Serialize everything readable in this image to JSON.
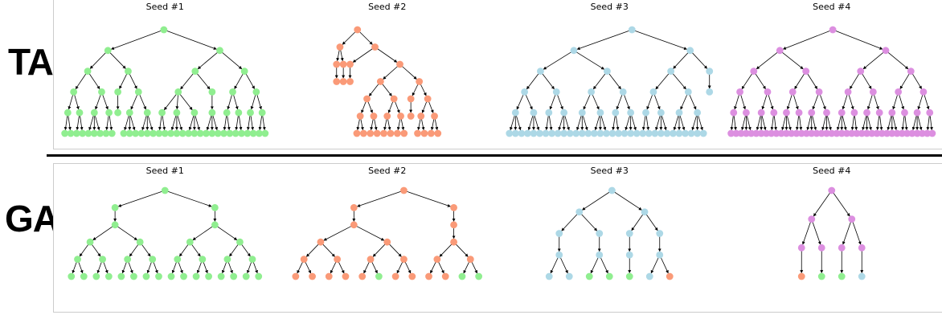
{
  "colors": {
    "green": "#90ee90",
    "orange": "#fa9a78",
    "blue": "#add8e6",
    "purple": "#dc8fe0"
  },
  "rows": [
    {
      "id": "tap",
      "label": "TAP",
      "seeds": [
        {
          "title": "Seed #1",
          "color": "green",
          "tree": [
            [
              [
                [
                  [
                    "g",
                    "g"
                  ],
                  [
                    "g",
                    "g"
                  ]
                ],
                [
                  [
                    "g",
                    "g",
                    "g"
                  ],
                  [
                    "g",
                    "g"
                  ]
                ]
              ],
              [
                [
                  "g"
                ],
                [
                  [
                    "g",
                    "g",
                    "g"
                  ],
                  [
                    "g",
                    "g",
                    "g"
                  ]
                ]
              ]
            ],
            [
              [
                [
                  [
                    "g",
                    "g"
                  ],
                  [
                    "g",
                    "g",
                    "g"
                  ],
                  [
                    "g",
                    "g",
                    "g"
                  ]
                ],
                [
                  [
                    "g",
                    "g",
                    "g"
                  ]
                ]
              ],
              [
                [
                  [
                    "g",
                    "g"
                  ],
                  [
                    "g",
                    "g"
                  ]
                ],
                [
                  [
                    "g",
                    "g"
                  ],
                  [
                    "g",
                    "g"
                  ]
                ]
              ]
            ]
          ]
        },
        {
          "title": "Seed #2",
          "color": "orange",
          "tree": [
            [
              [
                "o"
              ],
              [
                "o"
              ]
            ],
            [
              [
                "o"
              ],
              [
                [
                  [
                    [
                      "o",
                      "o"
                    ],
                    [
                      "o",
                      "o"
                    ]
                  ],
                  [
                    [
                      "o",
                      "o"
                    ],
                    [
                      "o",
                      "o"
                    ]
                  ]
                ],
                [
                  [
                    "o"
                  ],
                  [
                    [
                      "o",
                      "o"
                    ],
                    [
                      "o",
                      "o"
                    ]
                  ]
                ]
              ]
            ]
          ]
        },
        {
          "title": "Seed #3",
          "color": "blue",
          "tree": [
            [
              [
                [
                  [
                    "b",
                    "b",
                    "b"
                  ],
                  [
                    "b",
                    "b",
                    "b"
                  ]
                ],
                [
                  [
                    "b",
                    "b"
                  ],
                  [
                    "b",
                    "b",
                    "b"
                  ]
                ]
              ],
              [
                [
                  [
                    "b",
                    "b",
                    "b"
                  ],
                  [
                    "b",
                    "b",
                    "b"
                  ]
                ],
                [
                  [
                    "b",
                    "b"
                  ],
                  [
                    "b",
                    "b",
                    "b"
                  ]
                ]
              ]
            ],
            [
              [
                [
                  [
                    "b",
                    "b"
                  ],
                  [
                    "b",
                    "b",
                    "b"
                  ]
                ],
                [
                  [
                    "b",
                    "b",
                    "b"
                  ],
                  [
                    "b",
                    "b",
                    "b"
                  ]
                ]
              ],
              [
                "b"
              ]
            ]
          ]
        },
        {
          "title": "Seed #4",
          "color": "purple",
          "tree": [
            [
              [
                [
                  [
                    "p",
                    "p"
                  ],
                  [
                    "p",
                    "p",
                    "p"
                  ]
                ],
                [
                  [
                    "p",
                    "p",
                    "p"
                  ],
                  [
                    "p",
                    "p"
                  ]
                ]
              ],
              [
                [
                  [
                    "p",
                    "p",
                    "p"
                  ],
                  [
                    "p",
                    "p"
                  ]
                ],
                [
                  [
                    "p",
                    "p",
                    "p"
                  ],
                  [
                    "p",
                    "p",
                    "p"
                  ]
                ]
              ]
            ],
            [
              [
                [
                  [
                    "p",
                    "p",
                    "p"
                  ],
                  [
                    "p",
                    "p"
                  ]
                ],
                [
                  [
                    "p",
                    "p",
                    "p"
                  ],
                  [
                    "p",
                    "p"
                  ]
                ]
              ],
              [
                [
                  [
                    "p",
                    "p",
                    "p"
                  ],
                  [
                    "p",
                    "p"
                  ]
                ],
                [
                  [
                    "p",
                    "p",
                    "p"
                  ],
                  [
                    "p",
                    "p"
                  ]
                ]
              ]
            ]
          ]
        }
      ]
    },
    {
      "id": "gap",
      "label": "GAP",
      "seeds": [
        {
          "title": "Seed #1",
          "color": "green",
          "tree": [
            [
              [
                [
                  [
                    "g",
                    "g"
                  ],
                  [
                    "g",
                    "g"
                  ]
                ],
                [
                  [
                    "g",
                    "g"
                  ],
                  [
                    "g",
                    "g"
                  ]
                ]
              ]
            ],
            [
              [
                [
                  [
                    "g",
                    "g"
                  ],
                  [
                    "g",
                    "g"
                  ]
                ],
                [
                  [
                    "g",
                    "g"
                  ],
                  [
                    "g",
                    "g"
                  ]
                ]
              ]
            ]
          ]
        },
        {
          "title": "Seed #2",
          "color": "orange",
          "tree": [
            [
              [
                [
                  [
                    "o",
                    "o"
                  ],
                  [
                    "o",
                    "o"
                  ]
                ],
                [
                  [
                    "o",
                    "g"
                  ],
                  [
                    "o",
                    "o"
                  ]
                ]
              ]
            ],
            [
              [
                [
                  [
                    "o",
                    "o"
                  ],
                  [
                    "g",
                    "g"
                  ]
                ]
              ]
            ]
          ]
        },
        {
          "title": "Seed #3",
          "color": "blue",
          "tree": [
            [
              [
                [
                  "b",
                  "b"
                ]
              ],
              [
                [
                  "g",
                  "g"
                ]
              ]
            ],
            [
              [
                [
                  "g"
                ]
              ],
              [
                [
                  "b",
                  "o"
                ]
              ]
            ]
          ]
        },
        {
          "title": "Seed #4",
          "color": "purple",
          "tree": [
            [
              [
                "o"
              ],
              [
                "g"
              ]
            ],
            [
              [
                "g"
              ],
              [
                "b"
              ]
            ]
          ]
        }
      ]
    }
  ]
}
